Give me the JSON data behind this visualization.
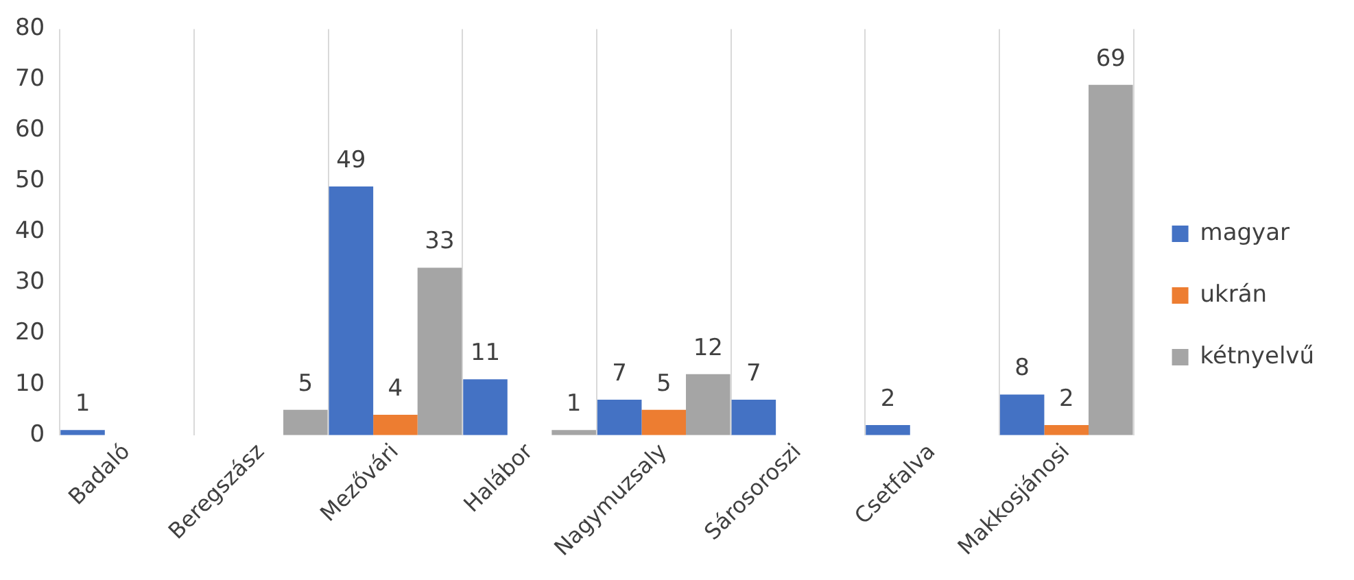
{
  "chart_data": {
    "type": "bar",
    "categories": [
      "Badaló",
      "Beregszász",
      "Mezővári",
      "Halábor",
      "Nagymuzsaly",
      "Sárosoroszi",
      "Csetfalva",
      "Makkosjánosi"
    ],
    "series": [
      {
        "name": "magyar",
        "color": "#4472c4",
        "values": [
          1,
          0,
          49,
          11,
          7,
          7,
          2,
          8
        ],
        "value_labels": [
          "1",
          null,
          "49",
          "11",
          "7",
          "7",
          "2",
          "8"
        ]
      },
      {
        "name": "ukrán",
        "color": "#ed7d31",
        "values": [
          0,
          0,
          4,
          0,
          5,
          0,
          0,
          2
        ],
        "value_labels": [
          null,
          null,
          "4",
          null,
          "5",
          null,
          null,
          "2"
        ]
      },
      {
        "name": "kétnyelvű",
        "color": "#a5a5a5",
        "values": [
          0,
          5,
          33,
          1,
          12,
          0,
          0,
          69
        ],
        "value_labels": [
          null,
          "5",
          "33",
          "1",
          "12",
          null,
          null,
          "69"
        ]
      }
    ],
    "ylim": [
      0,
      80
    ],
    "yticks": [
      0,
      10,
      20,
      30,
      40,
      50,
      60,
      70,
      80
    ],
    "grid": "x",
    "legend": "right"
  }
}
